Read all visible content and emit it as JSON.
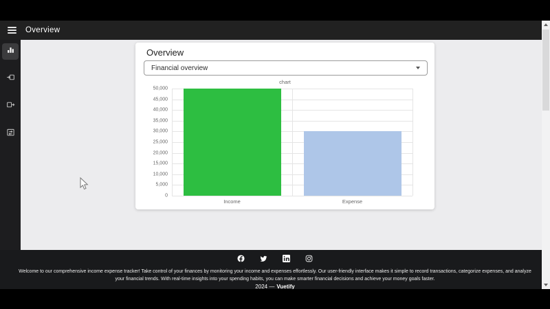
{
  "app_bar": {
    "title": "Overview"
  },
  "sidebar": {
    "items": [
      {
        "icon": "chart-bar-icon",
        "active": true
      },
      {
        "icon": "income-icon",
        "active": false
      },
      {
        "icon": "expense-icon",
        "active": false
      },
      {
        "icon": "transactions-icon",
        "active": false
      }
    ]
  },
  "card": {
    "title": "Overview",
    "select_value": "Financial overview"
  },
  "chart_data": {
    "type": "bar",
    "title": "chart",
    "categories": [
      "Income",
      "Expense"
    ],
    "values": [
      50000,
      30000
    ],
    "bar_colors": [
      "#2dbe41",
      "#aec6e8"
    ],
    "xlabel": "",
    "ylabel": "",
    "ylim": [
      0,
      50000
    ],
    "ytick_step": 5000,
    "ytick_labels": [
      "0",
      "5,000",
      "10,000",
      "15,000",
      "20,000",
      "25,000",
      "30,000",
      "35,000",
      "40,000",
      "45,000",
      "50,000"
    ],
    "grid": true,
    "legend": false
  },
  "footer": {
    "social_icons": [
      "facebook-icon",
      "twitter-icon",
      "linkedin-icon",
      "instagram-icon"
    ],
    "description": "Welcome to our comprehensive income expense tracker! Take control of your finances by monitoring your income and expenses effortlessly. Our user-friendly interface makes it simple to record transactions, categorize expenses, and analyze your financial trends. With real-time insights into your spending habits, you can make smarter financial decisions and achieve your money goals faster.",
    "copyright_prefix": "2024 —",
    "brand": "Vuetify"
  }
}
